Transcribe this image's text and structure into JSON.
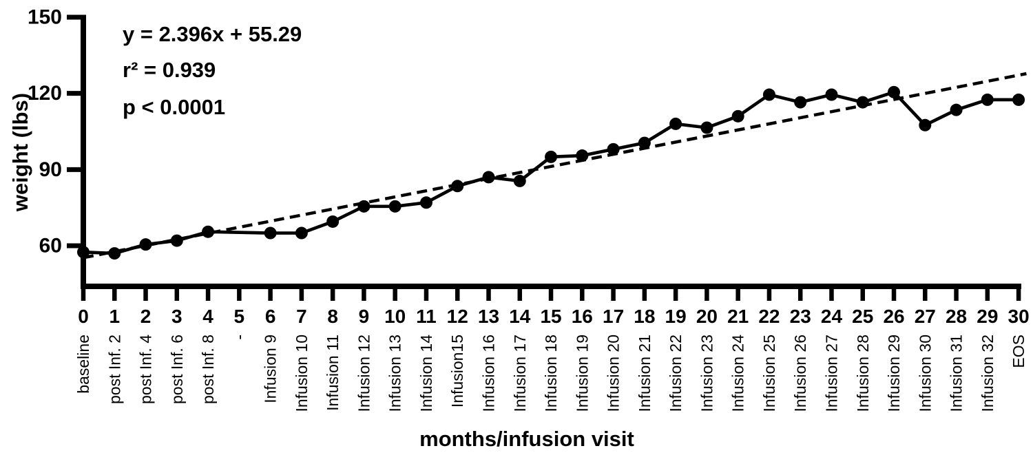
{
  "figure": {
    "background": "#ffffff",
    "ink": "#000000"
  },
  "chart_data": {
    "type": "line",
    "title": "",
    "xlabel": "months/infusion visit",
    "ylabel": "weight (lbs)",
    "x_axis": {
      "min": 0,
      "max": 30,
      "tick_interval": 1
    },
    "y_axis": {
      "ticks": [
        60,
        90,
        120,
        150
      ],
      "min": 44,
      "max": 150
    },
    "grid": "off",
    "legend": "none",
    "annotations": {
      "equation": "y = 2.396x + 55.29",
      "r_squared": "r² = 0.939",
      "p_value": "p < 0.0001"
    },
    "regression": {
      "slope": 2.396,
      "intercept": 55.29,
      "x_start": 0,
      "x_end": 30.25,
      "style": "dashed"
    },
    "series_name": "weight",
    "points": [
      {
        "month": 0,
        "visit": "baseline",
        "weight": 57.5
      },
      {
        "month": 1,
        "visit": "post Inf. 2",
        "weight": 57
      },
      {
        "month": 2,
        "visit": "post Inf. 4",
        "weight": 60.5
      },
      {
        "month": 3,
        "visit": "post Inf. 6",
        "weight": 62
      },
      {
        "month": 4,
        "visit": "post Inf. 8",
        "weight": 65.5
      },
      {
        "month": 5,
        "visit": "-",
        "weight": null
      },
      {
        "month": 6,
        "visit": "Infusion 9",
        "weight": 65
      },
      {
        "month": 7,
        "visit": "Infusion 10",
        "weight": 65
      },
      {
        "month": 8,
        "visit": "Infusion 11",
        "weight": 69.5
      },
      {
        "month": 9,
        "visit": "Infusion 12",
        "weight": 75.5
      },
      {
        "month": 10,
        "visit": "Infusion 13",
        "weight": 75.5
      },
      {
        "month": 11,
        "visit": "Infusion 14",
        "weight": 77
      },
      {
        "month": 12,
        "visit": "Infusion15",
        "weight": 83.5
      },
      {
        "month": 13,
        "visit": "Infusion 16",
        "weight": 87
      },
      {
        "month": 14,
        "visit": "Infusion 17",
        "weight": 85.5
      },
      {
        "month": 15,
        "visit": "Infusion 18",
        "weight": 95
      },
      {
        "month": 16,
        "visit": "Infusion 19",
        "weight": 95.5
      },
      {
        "month": 17,
        "visit": "Infusion 20",
        "weight": 98
      },
      {
        "month": 18,
        "visit": "Infusion 21",
        "weight": 100.5
      },
      {
        "month": 19,
        "visit": "Infusion 22",
        "weight": 108
      },
      {
        "month": 20,
        "visit": "Infusion 23",
        "weight": 106.5
      },
      {
        "month": 21,
        "visit": "Infusion 24",
        "weight": 111
      },
      {
        "month": 22,
        "visit": "Infusion 25",
        "weight": 119.5
      },
      {
        "month": 23,
        "visit": "Infusion 26",
        "weight": 116.5
      },
      {
        "month": 24,
        "visit": "Infusion 27",
        "weight": 119.5
      },
      {
        "month": 25,
        "visit": "Infusion 28",
        "weight": 116.5
      },
      {
        "month": 26,
        "visit": "Infusion 29",
        "weight": 120.5
      },
      {
        "month": 27,
        "visit": "Infusion 30",
        "weight": 107.5
      },
      {
        "month": 28,
        "visit": "Infusion 31",
        "weight": 113.5
      },
      {
        "month": 29,
        "visit": "Infusion 32",
        "weight": 117.5
      },
      {
        "month": 30,
        "visit": "EOS",
        "weight": 117.5
      }
    ]
  }
}
